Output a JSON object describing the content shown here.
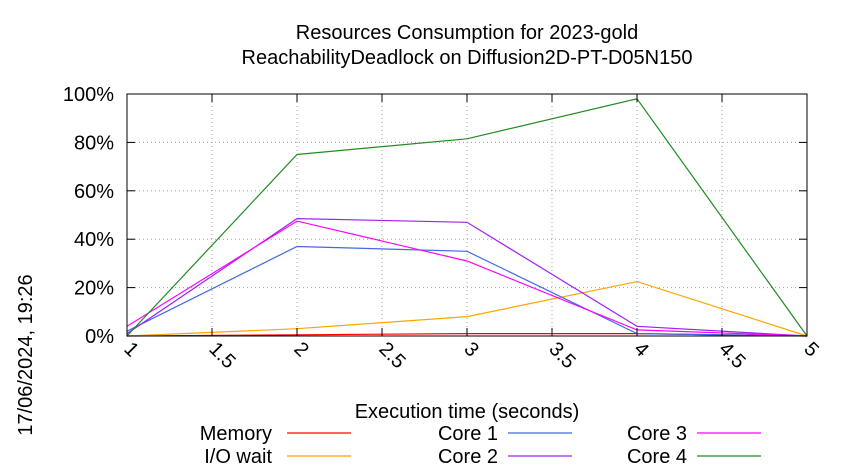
{
  "chart_data": {
    "type": "line",
    "title": [
      "Resources Consumption for 2023-gold",
      "ReachabilityDeadlock on Diffusion2D-PT-D05N150"
    ],
    "xlabel": "Execution time (seconds)",
    "ylabel": "",
    "side_label": "17/06/2024, 19:26",
    "xlim": [
      1,
      5
    ],
    "ylim": [
      0,
      100
    ],
    "x_ticks": [
      1,
      1.5,
      2,
      2.5,
      3,
      3.5,
      4,
      4.5,
      5
    ],
    "x_tick_labels": [
      "1",
      "1.5",
      "2",
      "2.5",
      "3",
      "3.5",
      "4",
      "4.5",
      "5"
    ],
    "y_ticks": [
      0,
      20,
      40,
      60,
      80,
      100
    ],
    "y_tick_labels": [
      "0%",
      "20%",
      "40%",
      "60%",
      "80%",
      "100%"
    ],
    "grid": true,
    "legend_position": "bottom",
    "x": [
      1,
      2,
      3,
      4,
      5
    ],
    "series": [
      {
        "name": "Memory",
        "color": "#ff0000",
        "values": [
          0,
          0.5,
          1,
          1,
          0
        ]
      },
      {
        "name": "I/O wait",
        "color": "#ffa500",
        "values": [
          0,
          3,
          8,
          22.5,
          0
        ]
      },
      {
        "name": "Core 1",
        "color": "#4169e1",
        "values": [
          2,
          37,
          35,
          1,
          0
        ]
      },
      {
        "name": "Core 2",
        "color": "#a020f0",
        "values": [
          1,
          48.5,
          47,
          4,
          0
        ]
      },
      {
        "name": "Core 3",
        "color": "#ff00ff",
        "values": [
          4,
          47.5,
          31,
          2.5,
          0
        ]
      },
      {
        "name": "Core 4",
        "color": "#228b22",
        "values": [
          0,
          75,
          81.5,
          98,
          0
        ]
      }
    ]
  }
}
